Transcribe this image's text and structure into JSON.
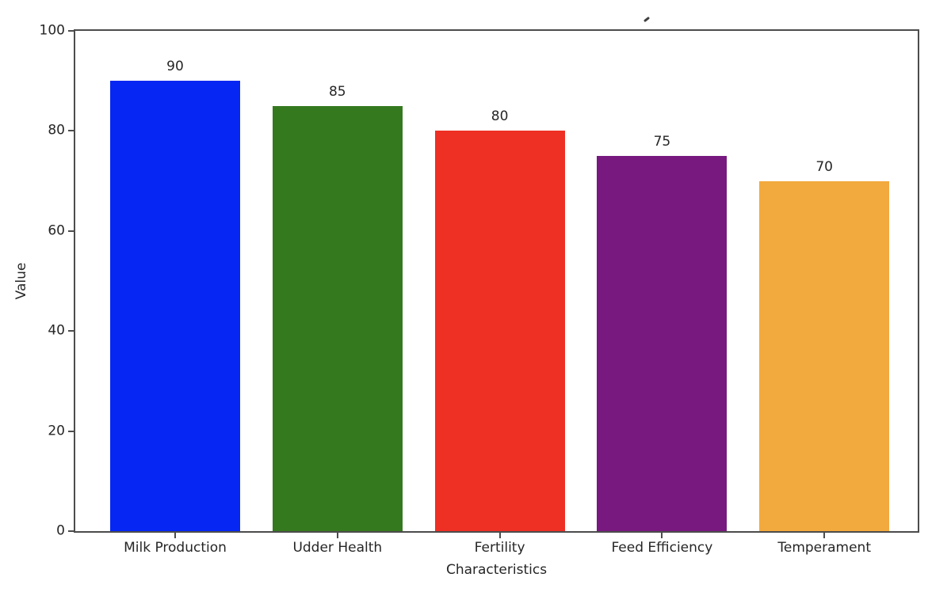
{
  "figure": {
    "background": "#ffffff"
  },
  "chart_data": {
    "type": "bar",
    "title": "",
    "title_visible_fragment": "descender tip of a glyph from a title cropped off at the top edge",
    "xlabel": "Characteristics",
    "ylabel": "Value",
    "categories": [
      "Milk Production",
      "Udder Health",
      "Fertility",
      "Feed Efficiency",
      "Temperament"
    ],
    "values": [
      90,
      85,
      80,
      75,
      70
    ],
    "bar_value_labels": [
      "90",
      "85",
      "80",
      "75",
      "70"
    ],
    "bar_colors": [
      "#0626f3",
      "#35791f",
      "#ee2f24",
      "#77197f",
      "#f2a93d"
    ],
    "yticks": [
      0,
      20,
      40,
      60,
      80,
      100
    ],
    "ylim": [
      0,
      100
    ],
    "grid": false,
    "legend": "none",
    "axis_color": "#4c4c4c",
    "text_color": "#262626"
  }
}
